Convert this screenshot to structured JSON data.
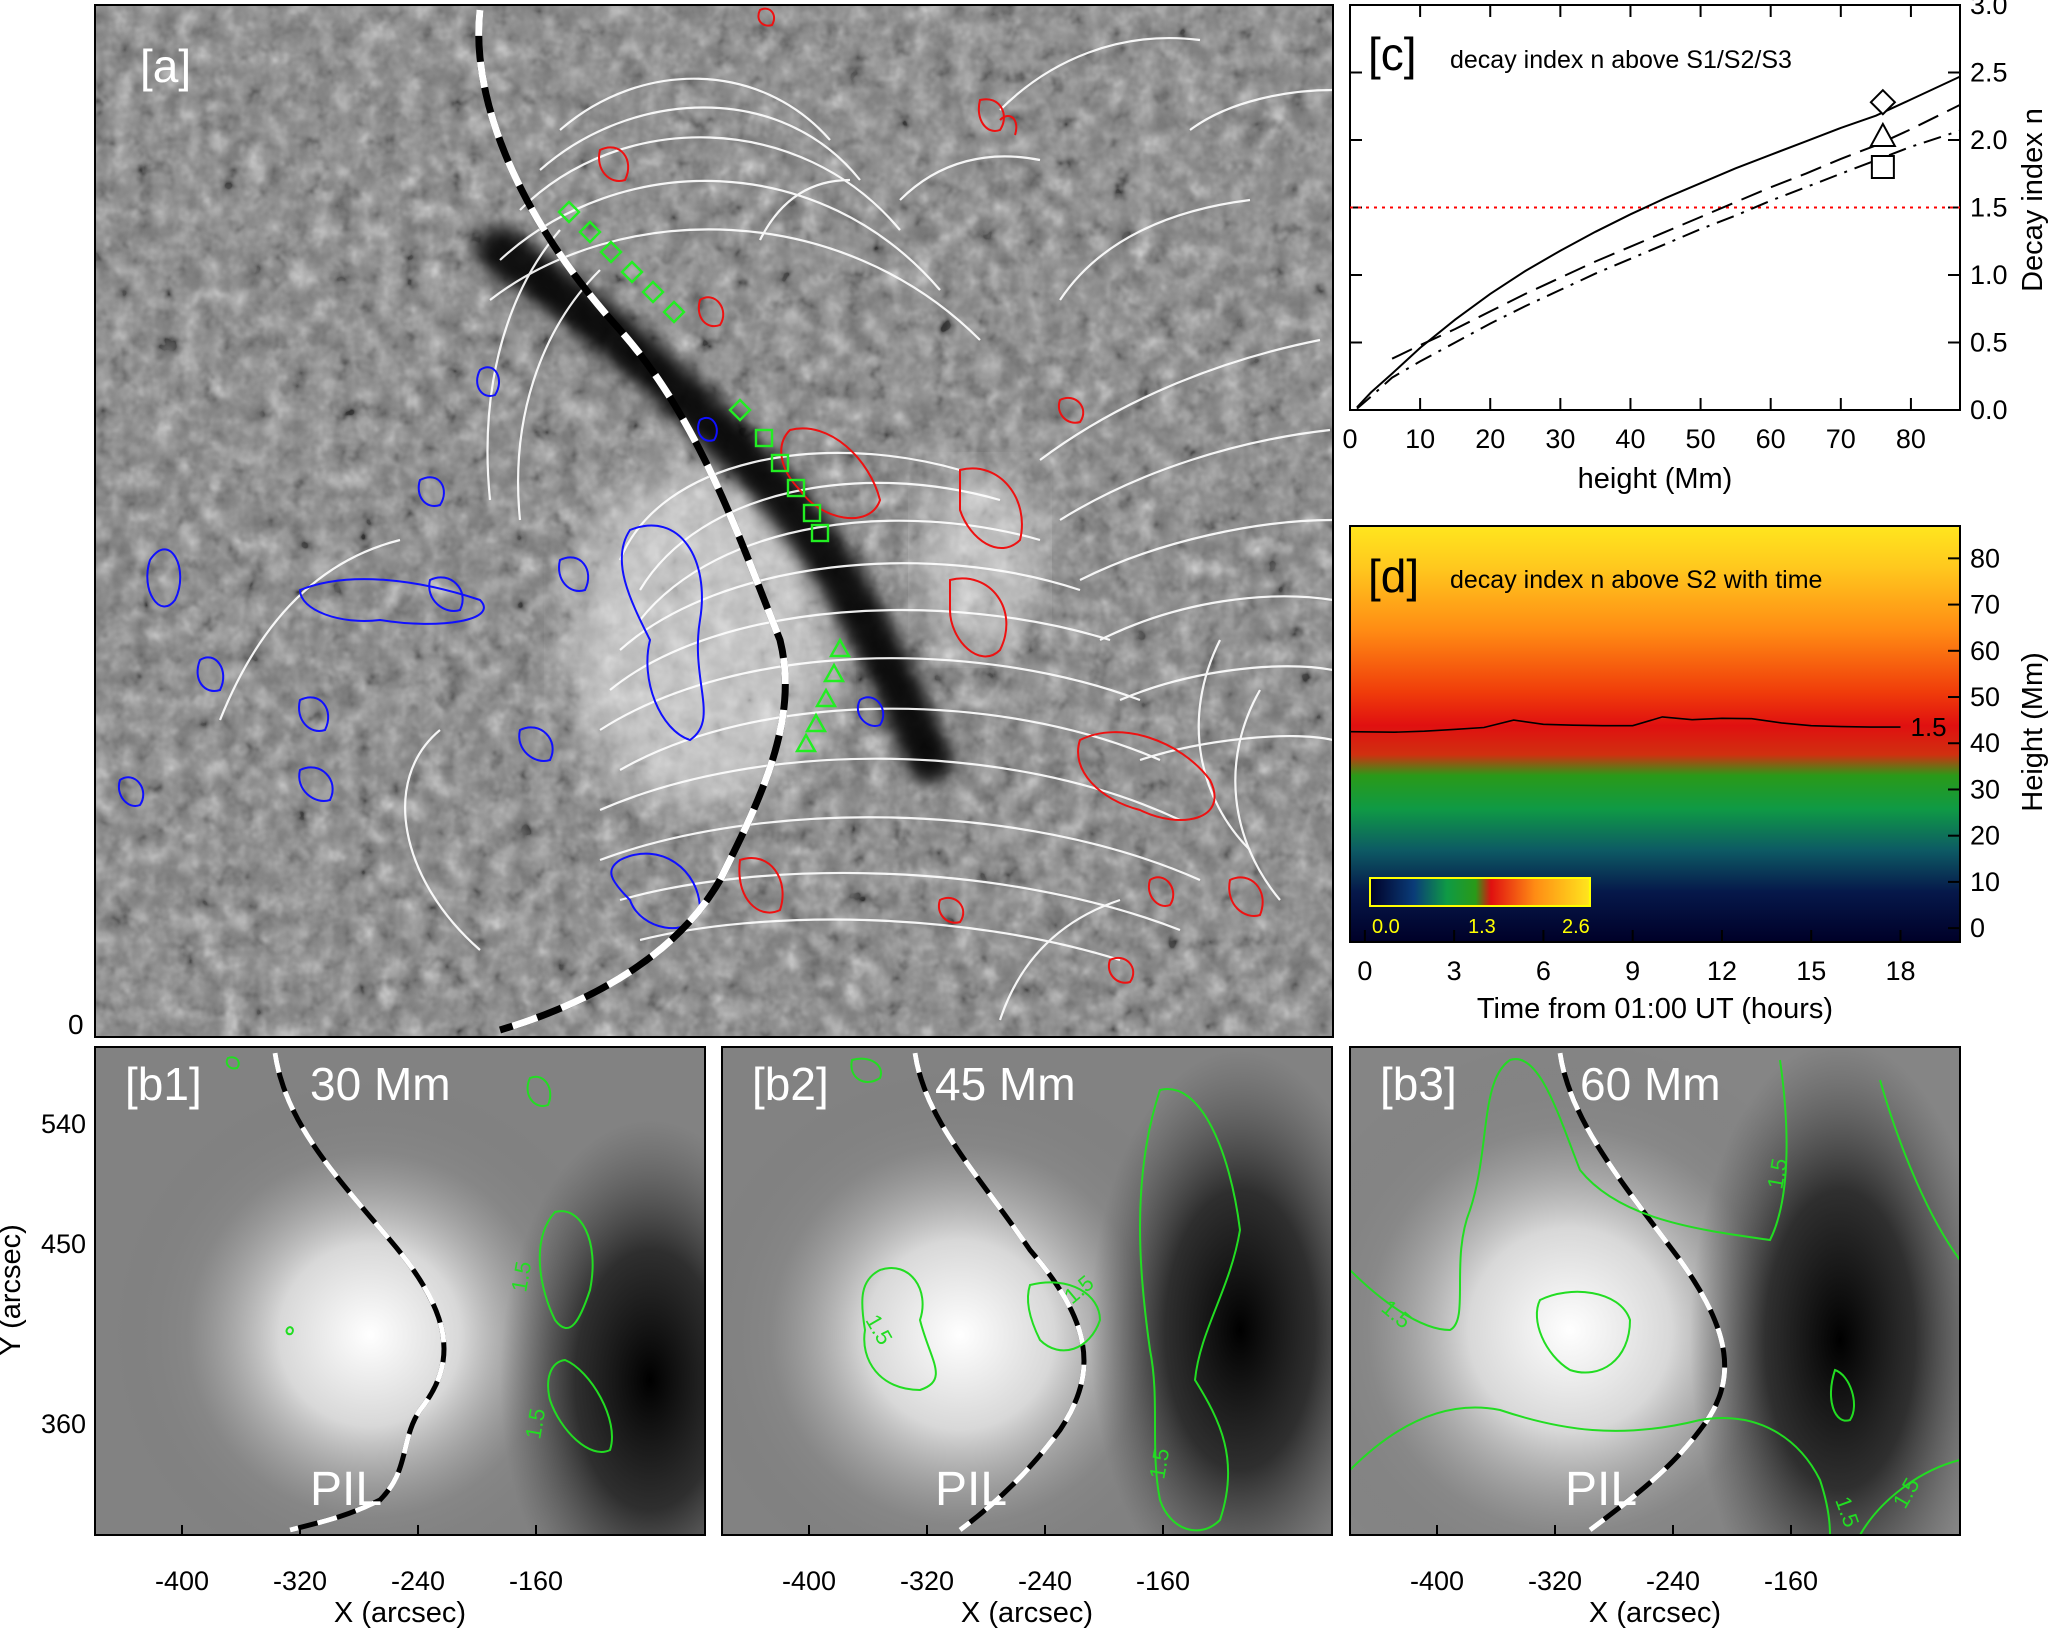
{
  "panel_a": {
    "label": "[a]",
    "corner_zero": "0"
  },
  "panel_b": [
    {
      "label": "[b1]",
      "height": "30 Mm",
      "pil": "PIL",
      "contour_labels": [
        "1.5",
        "1.5"
      ]
    },
    {
      "label": "[b2]",
      "height": "45 Mm",
      "pil": "PIL",
      "contour_labels": [
        "1.5",
        "1.5",
        "1.5"
      ]
    },
    {
      "label": "[b3]",
      "height": "60 Mm",
      "pil": "PIL",
      "contour_labels": [
        "1.5",
        "1.5",
        "1.5",
        "1.5"
      ]
    }
  ],
  "panel_b_axes": {
    "xlabel": "X (arcsec)",
    "ylabel": "Y (arcsec)",
    "xticks": [
      "-400",
      "-320",
      "-240",
      "-160"
    ],
    "yticks": [
      "540",
      "450",
      "360"
    ]
  },
  "panel_c": {
    "label": "[c]",
    "title": "decay index n above S1/S2/S3",
    "xlabel": "height (Mm)",
    "ylabel": "Decay index n",
    "xticks": [
      "0",
      "10",
      "20",
      "30",
      "40",
      "50",
      "60",
      "70",
      "80"
    ],
    "yticks": [
      "0.0",
      "0.5",
      "1.0",
      "1.5",
      "2.0",
      "2.5",
      "3.0"
    ],
    "threshold_color": "#ff0000"
  },
  "panel_d": {
    "label": "[d]",
    "title": "decay index n above S2 with time",
    "xlabel": "Time from 01:00 UT (hours)",
    "ylabel": "Height (Mm)",
    "xticks": [
      "0",
      "3",
      "6",
      "9",
      "12",
      "15",
      "18"
    ],
    "yticks": [
      "0",
      "10",
      "20",
      "30",
      "40",
      "50",
      "60",
      "70",
      "80"
    ],
    "contour_label": "1.5",
    "colorbar_labels": [
      "0.0",
      "1.3",
      "2.6"
    ]
  },
  "chart_data": [
    {
      "type": "line",
      "panel": "c",
      "title": "decay index n above S1/S2/S3",
      "xlabel": "height (Mm)",
      "ylabel": "Decay index n",
      "xlim": [
        0,
        87
      ],
      "ylim": [
        0,
        3.0
      ],
      "threshold": 1.5,
      "series": [
        {
          "style": "solid",
          "marker": "diamond",
          "x": [
            1,
            3,
            6,
            10,
            15,
            20,
            25,
            30,
            35,
            40,
            45,
            50,
            55,
            60,
            65,
            70,
            75,
            80,
            87
          ],
          "y": [
            0.02,
            0.13,
            0.27,
            0.46,
            0.67,
            0.86,
            1.03,
            1.18,
            1.32,
            1.45,
            1.57,
            1.68,
            1.79,
            1.89,
            1.99,
            2.09,
            2.18,
            2.3,
            2.47
          ],
          "marker_at": [
            76,
            2.28
          ]
        },
        {
          "style": "dashed",
          "marker": "triangle",
          "x": [
            6,
            10,
            15,
            20,
            25,
            30,
            35,
            40,
            45,
            50,
            55,
            60,
            65,
            70,
            75,
            80,
            87
          ],
          "y": [
            0.38,
            0.48,
            0.6,
            0.73,
            0.86,
            0.98,
            1.1,
            1.21,
            1.32,
            1.43,
            1.54,
            1.65,
            1.75,
            1.86,
            1.96,
            2.08,
            2.26
          ],
          "marker_at": [
            76,
            2.03
          ]
        },
        {
          "style": "dash-dot",
          "marker": "square",
          "x": [
            1,
            3,
            6,
            10,
            15,
            20,
            25,
            30,
            35,
            40,
            45,
            50,
            55,
            60,
            65,
            70,
            75,
            80,
            87
          ],
          "y": [
            0.01,
            0.1,
            0.24,
            0.36,
            0.5,
            0.64,
            0.77,
            0.89,
            1.01,
            1.12,
            1.23,
            1.34,
            1.44,
            1.55,
            1.65,
            1.75,
            1.85,
            1.95,
            2.07
          ],
          "marker_at": [
            76,
            1.8
          ]
        }
      ]
    },
    {
      "type": "heatmap",
      "panel": "d",
      "title": "decay index n above S2 with time",
      "xlabel": "Time from 01:00 UT (hours)",
      "ylabel": "Height (Mm)",
      "xlim": [
        -0.5,
        20
      ],
      "ylim": [
        -3,
        87
      ],
      "colorbar": {
        "min": 0.0,
        "max": 2.6,
        "labels": [
          "0.0",
          "1.3",
          "2.6"
        ]
      },
      "contour_1p5": {
        "x": [
          -0.5,
          1,
          2,
          3,
          4,
          5,
          6,
          7,
          8,
          9,
          10,
          11,
          12,
          13,
          14,
          15,
          16,
          17,
          18
        ],
        "y": [
          42.5,
          42.4,
          42.6,
          43.0,
          43.4,
          45.0,
          44.1,
          43.9,
          43.8,
          43.8,
          45.7,
          45.1,
          45.4,
          45.3,
          44.4,
          43.8,
          43.6,
          43.5,
          43.5
        ]
      }
    }
  ]
}
